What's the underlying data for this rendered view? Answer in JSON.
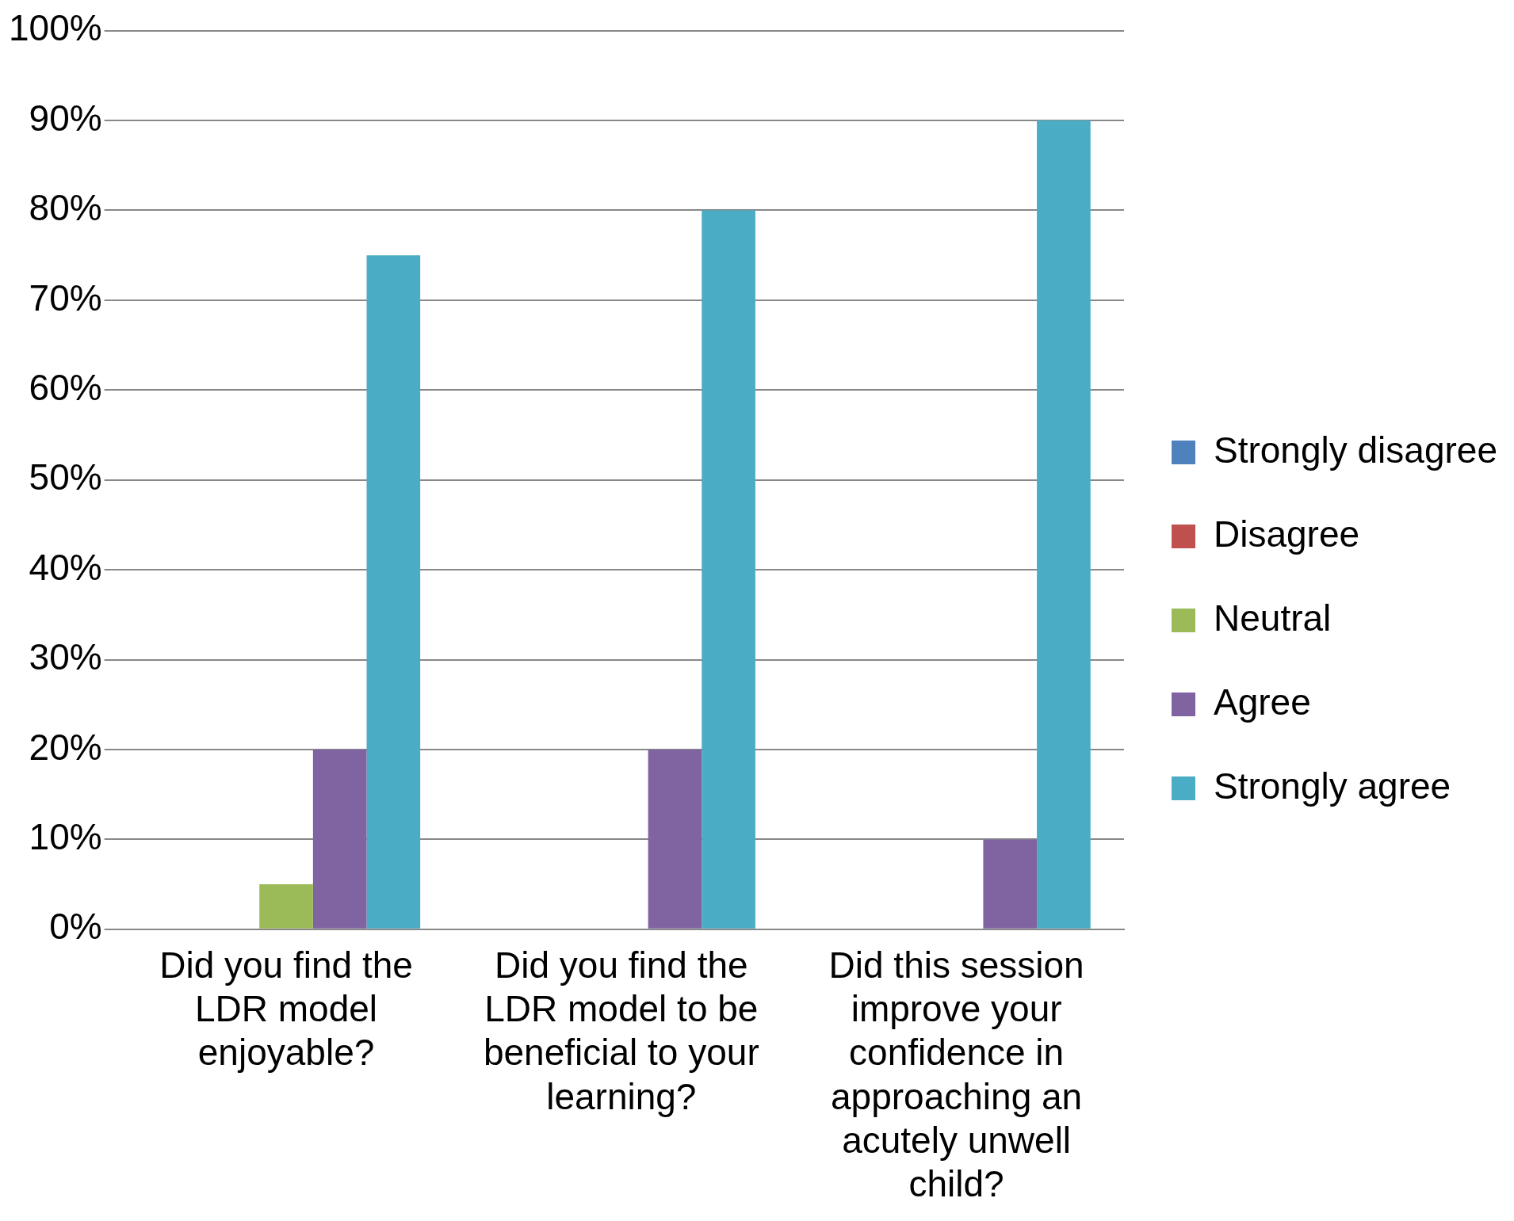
{
  "chart_data": {
    "type": "bar",
    "categories": [
      "Did you find the LDR model enjoyable?",
      "Did you find the LDR model to be beneficial to your learning?",
      "Did this session improve your confidence in approaching an acutely unwell child?"
    ],
    "series": [
      {
        "name": "Strongly disagree",
        "color": "#4f81bd",
        "values": [
          0,
          0,
          0
        ]
      },
      {
        "name": "Disagree",
        "color": "#c0504d",
        "values": [
          0,
          0,
          0
        ]
      },
      {
        "name": "Neutral",
        "color": "#9bbb59",
        "values": [
          5,
          0,
          0
        ]
      },
      {
        "name": "Agree",
        "color": "#8064a2",
        "values": [
          20,
          20,
          10
        ]
      },
      {
        "name": "Strongly agree",
        "color": "#4bacc6",
        "values": [
          75,
          80,
          90
        ]
      }
    ],
    "ylim": [
      0,
      100
    ],
    "yticks": [
      {
        "value": 0,
        "label": "0%"
      },
      {
        "value": 10,
        "label": "10%"
      },
      {
        "value": 20,
        "label": "20%"
      },
      {
        "value": 30,
        "label": "30%"
      },
      {
        "value": 40,
        "label": "40%"
      },
      {
        "value": 50,
        "label": "50%"
      },
      {
        "value": 60,
        "label": "60%"
      },
      {
        "value": 70,
        "label": "70%"
      },
      {
        "value": 80,
        "label": "80%"
      },
      {
        "value": 90,
        "label": "90%"
      },
      {
        "value": 100,
        "label": "100%"
      }
    ],
    "grid": "y",
    "legend": "right"
  }
}
